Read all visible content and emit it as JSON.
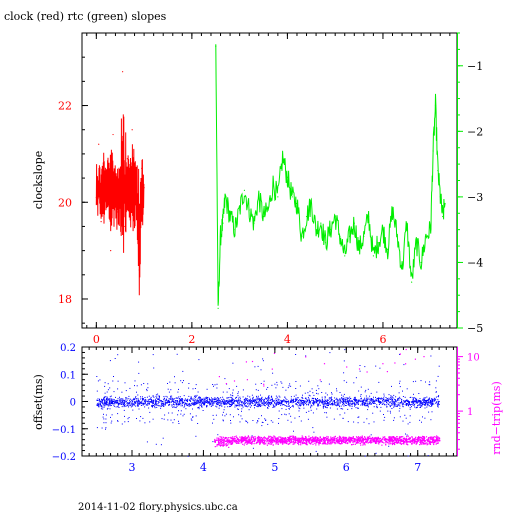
{
  "colors": {
    "red": "#ff0000",
    "green": "#00ee00",
    "blue": "#0000ff",
    "magenta": "#ff00ff",
    "black": "#000000"
  },
  "title": "clock (red) rtc (green) slopes",
  "footer": "2014-11-02 flory.physics.ubc.ca",
  "chart_data": [
    {
      "type": "line",
      "title": "clock (red) rtc (green) slopes",
      "xlim": [
        -0.3,
        7.55
      ],
      "x_ticks": [
        0,
        2,
        4,
        6
      ],
      "x_tick_labels": [
        "0",
        "2",
        "4",
        "6"
      ],
      "left_axis": {
        "label": "clockslope",
        "ylim": [
          17.4,
          23.5
        ],
        "ticks": [
          18,
          20,
          22
        ],
        "tick_labels": [
          "18",
          "20",
          "22"
        ],
        "color": "red"
      },
      "right_axis": {
        "label": "",
        "ylim": [
          -5,
          -0.5
        ],
        "ticks": [
          -5,
          -4,
          -3,
          -2,
          -1
        ],
        "tick_labels": [
          "−5",
          "−4",
          "−3",
          "−2",
          "−1"
        ],
        "color": "green"
      },
      "series": [
        {
          "color": "red",
          "axis": "left",
          "x": [
            0.0,
            0.05,
            0.1,
            0.15,
            0.2,
            0.25,
            0.3,
            0.35,
            0.4,
            0.45,
            0.5,
            0.55,
            0.6,
            0.65,
            0.7,
            0.75,
            0.8,
            0.85,
            0.9,
            0.95,
            1.0
          ],
          "y": [
            20.1,
            21.2,
            19.6,
            20.8,
            20.0,
            20.5,
            19.0,
            21.4,
            20.3,
            19.8,
            20.6,
            22.7,
            19.5,
            20.9,
            20.2,
            21.5,
            19.7,
            20.4,
            18.6,
            20.7,
            20.3
          ],
          "band": [
            [
              19.5,
              21.0
            ],
            [
              19.7,
              20.9
            ],
            [
              19.6,
              20.8
            ],
            [
              19.4,
              21.2
            ],
            [
              19.6,
              20.8
            ],
            [
              19.5,
              21.0
            ],
            [
              19.2,
              21.0
            ],
            [
              19.4,
              21.3
            ],
            [
              19.6,
              20.9
            ],
            [
              19.3,
              21.0
            ],
            [
              19.4,
              21.2
            ],
            [
              18.9,
              22.9
            ],
            [
              19.0,
              21.6
            ],
            [
              19.3,
              21.1
            ],
            [
              19.5,
              21.0
            ],
            [
              19.2,
              21.6
            ],
            [
              19.4,
              20.9
            ],
            [
              19.5,
              21.0
            ],
            [
              17.7,
              21.0
            ],
            [
              19.4,
              21.0
            ],
            [
              19.5,
              20.7
            ]
          ]
        },
        {
          "color": "green",
          "axis": "right",
          "x": [
            2.5,
            2.55,
            2.6,
            2.65,
            2.7,
            2.8,
            2.9,
            3.0,
            3.1,
            3.2,
            3.3,
            3.4,
            3.5,
            3.6,
            3.7,
            3.8,
            3.9,
            4.0,
            4.1,
            4.2,
            4.3,
            4.4,
            4.5,
            4.6,
            4.7,
            4.8,
            4.9,
            5.0,
            5.1,
            5.2,
            5.3,
            5.4,
            5.5,
            5.6,
            5.7,
            5.8,
            5.9,
            6.0,
            6.1,
            6.2,
            6.3,
            6.4,
            6.5,
            6.6,
            6.7,
            6.8,
            6.9,
            7.0,
            7.05,
            7.1,
            7.15,
            7.2,
            7.25,
            7.3
          ],
          "y": [
            -0.7,
            -4.7,
            -3.6,
            -3.4,
            -3.0,
            -3.3,
            -3.5,
            -3.2,
            -2.9,
            -3.2,
            -3.4,
            -3.0,
            -3.3,
            -3.2,
            -2.8,
            -3.0,
            -2.4,
            -2.7,
            -3.0,
            -3.1,
            -3.6,
            -3.3,
            -3.1,
            -3.5,
            -3.4,
            -3.7,
            -3.5,
            -3.3,
            -3.6,
            -3.9,
            -3.6,
            -3.4,
            -3.8,
            -3.6,
            -3.3,
            -3.9,
            -3.7,
            -3.5,
            -3.8,
            -3.2,
            -3.6,
            -4.1,
            -3.4,
            -4.3,
            -3.7,
            -4.0,
            -3.6,
            -3.5,
            -2.3,
            -1.6,
            -2.6,
            -3.0,
            -3.3,
            -3.1
          ]
        }
      ]
    },
    {
      "type": "scatter",
      "xlim": [
        2.3,
        7.55
      ],
      "x_ticks": [
        3,
        4,
        5,
        6,
        7
      ],
      "x_tick_labels": [
        "3",
        "4",
        "5",
        "6",
        "7"
      ],
      "left_axis": {
        "label": "offset(ms)",
        "ylim": [
          -0.2,
          0.2
        ],
        "ticks": [
          -0.2,
          -0.1,
          0,
          0.1,
          0.2
        ],
        "tick_labels": [
          "−0.2",
          "−0.1",
          "0",
          "0.1",
          "0.2"
        ],
        "color": "blue"
      },
      "right_axis": {
        "label": "rnd−trip(ms)",
        "scale": "log",
        "ylim": [
          0.15,
          15
        ],
        "ticks": [
          1,
          10
        ],
        "tick_labels": [
          "1",
          "10"
        ],
        "color": "magenta"
      },
      "series": [
        {
          "color": "blue",
          "axis": "left",
          "x_range": [
            2.5,
            7.3
          ],
          "core_y_range": [
            -0.03,
            0.03
          ],
          "spread_y_range": [
            -0.2,
            0.2
          ],
          "mean_y": 0.0
        },
        {
          "color": "magenta",
          "axis": "right",
          "x_range": [
            4.15,
            7.3
          ],
          "y_band": [
            0.24,
            0.36
          ],
          "outliers_y_range": [
            2,
            14
          ],
          "mean_y": 0.3
        }
      ]
    }
  ]
}
